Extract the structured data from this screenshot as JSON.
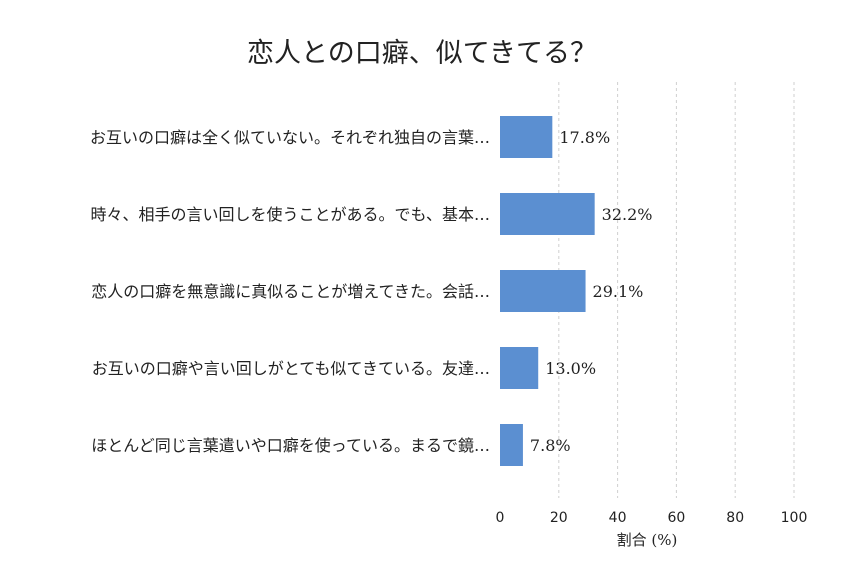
{
  "chart_data": {
    "type": "bar",
    "orientation": "horizontal",
    "title": "恋人との口癖、似てきてる？",
    "categories": [
      "お互いの口癖は全く似ていない。それぞれ独自の言葉…",
      "時々、相手の言い回しを使うことがある。でも、基本…",
      "恋人の口癖を無意識に真似ることが増えてきた。会話…",
      "お互いの口癖や言い回しがとても似てきている。友達…",
      "ほとんど同じ言葉遣いや口癖を使っている。まるで鏡…"
    ],
    "values": [
      17.8,
      32.2,
      29.1,
      13.0,
      7.8
    ],
    "value_labels": [
      "17.8%",
      "32.2%",
      "29.1%",
      "13.0%",
      "7.8%"
    ],
    "xlabel": "割合 (%)",
    "ylabel": "",
    "xlim": [
      0,
      100
    ],
    "xticks": [
      0,
      20,
      40,
      60,
      80,
      100
    ],
    "grid": "x-dashed",
    "bar_color": "#5b8fd1"
  }
}
